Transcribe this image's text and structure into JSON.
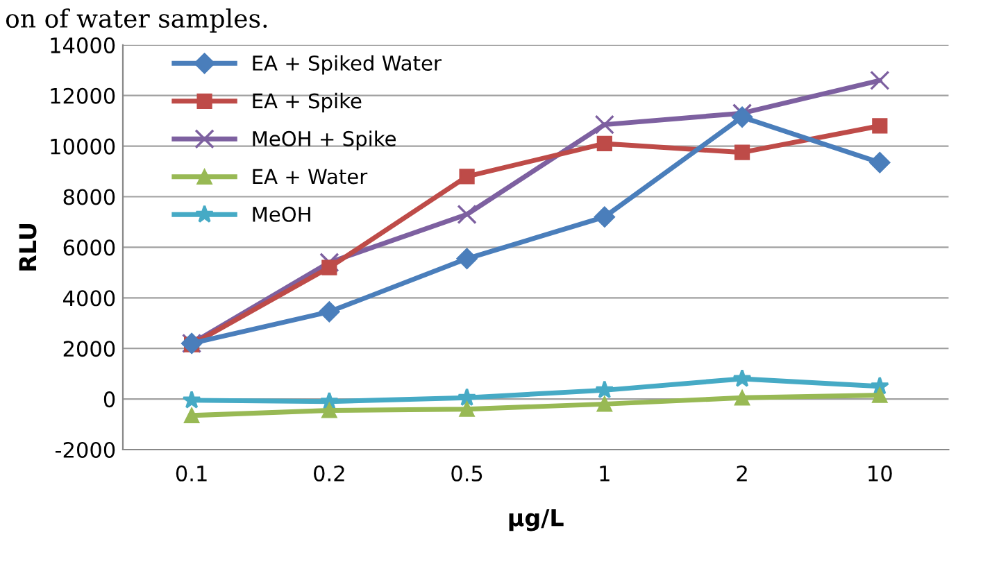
{
  "chart_data": {
    "type": "line",
    "xlabel": "µg/L",
    "ylabel": "RLU",
    "annotations": [
      "on of water samples."
    ],
    "categories": [
      "0.1",
      "0.2",
      "0.5",
      "1",
      "2",
      "10"
    ],
    "ylim": [
      -2000,
      14000
    ],
    "yticks": [
      -2000,
      0,
      2000,
      4000,
      6000,
      8000,
      10000,
      12000,
      14000
    ],
    "grid": "y",
    "legend": "top left",
    "line_style": "solid",
    "series": [
      {
        "name": "EA + Spiked Water",
        "color": "#4a7ebb",
        "marker": "diamond",
        "values": [
          2200,
          3450,
          5550,
          7200,
          11150,
          9350
        ]
      },
      {
        "name": "EA + Spike",
        "color": "#be4b48",
        "marker": "square",
        "values": [
          2150,
          5200,
          8800,
          10100,
          9750,
          10800
        ]
      },
      {
        "name": "MeOH + Spike",
        "color": "#7d60a0",
        "marker": "cross",
        "values": [
          2200,
          5400,
          7300,
          10850,
          11300,
          12600
        ]
      },
      {
        "name": "EA + Water",
        "color": "#98b954",
        "marker": "triangle",
        "values": [
          -650,
          -450,
          -400,
          -200,
          50,
          150
        ]
      },
      {
        "name": "MeOH",
        "color": "#46aac5",
        "marker": "star",
        "values": [
          -50,
          -100,
          50,
          350,
          800,
          500
        ]
      }
    ]
  }
}
